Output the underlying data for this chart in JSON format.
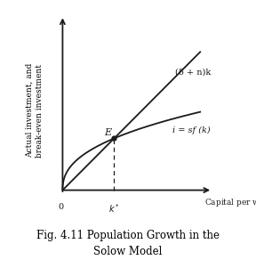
{
  "caption": "Fig. 4.11 Population Growth in the\nSolow Model",
  "ylabel": "Actual investment, and\nbreak-even investment",
  "line_color": "#1a1a1a",
  "background_color": "#ffffff",
  "E_label": "E",
  "breakeven_label": "(δ + n)k",
  "investment_label": "i = sf (k)",
  "slope": 0.72,
  "s": 1.55,
  "alpha": 0.42,
  "x_max": 10.0,
  "y_max": 8.5,
  "caption_fontsize": 8.5,
  "ylabel_fontsize": 6.5,
  "annotation_fontsize": 8.0,
  "tick_fontsize": 8.0
}
